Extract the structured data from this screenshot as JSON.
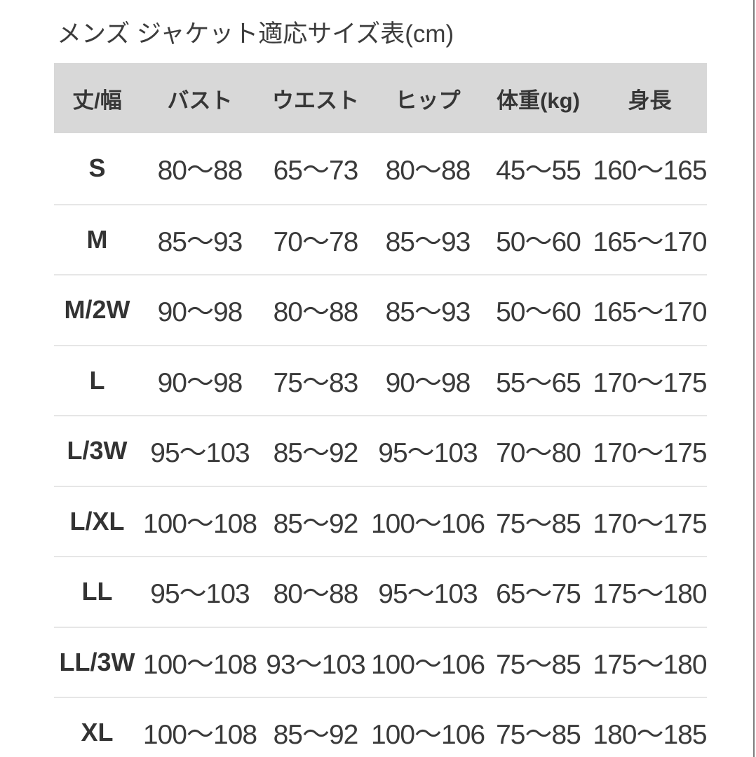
{
  "page": {
    "title": "メンズ ジャケット適応サイズ表(cm)"
  },
  "table": {
    "columns": [
      "丈/幅",
      "バスト",
      "ウエスト",
      "ヒップ",
      "体重(kg)",
      "身長"
    ],
    "rows": [
      {
        "size": "S",
        "bust": "80〜88",
        "waist": "65〜73",
        "hip": "80〜88",
        "weight": "45〜55",
        "height": "160〜165"
      },
      {
        "size": "M",
        "bust": "85〜93",
        "waist": "70〜78",
        "hip": "85〜93",
        "weight": "50〜60",
        "height": "165〜170"
      },
      {
        "size": "M/2W",
        "bust": "90〜98",
        "waist": "80〜88",
        "hip": "85〜93",
        "weight": "50〜60",
        "height": "165〜170"
      },
      {
        "size": "L",
        "bust": "90〜98",
        "waist": "75〜83",
        "hip": "90〜98",
        "weight": "55〜65",
        "height": "170〜175"
      },
      {
        "size": "L/3W",
        "bust": "95〜103",
        "waist": "85〜92",
        "hip": "95〜103",
        "weight": "70〜80",
        "height": "170〜175"
      },
      {
        "size": "L/XL",
        "bust": "100〜108",
        "waist": "85〜92",
        "hip": "100〜106",
        "weight": "75〜85",
        "height": "170〜175"
      },
      {
        "size": "LL",
        "bust": "95〜103",
        "waist": "80〜88",
        "hip": "95〜103",
        "weight": "65〜75",
        "height": "175〜180"
      },
      {
        "size": "LL/3W",
        "bust": "100〜108",
        "waist": "93〜103",
        "hip": "100〜106",
        "weight": "75〜85",
        "height": "175〜180"
      },
      {
        "size": "XL",
        "bust": "100〜108",
        "waist": "85〜92",
        "hip": "100〜106",
        "weight": "75〜85",
        "height": "180〜185"
      }
    ]
  },
  "colors": {
    "header_background": "#d8d8d8",
    "row_divider": "#e6e6e6",
    "body_text": "#3a3a3a",
    "header_text": "#363636",
    "title_text": "#3c3c3c",
    "right_edge_line": "#7d7d7d",
    "page_background": "#ffffff"
  }
}
